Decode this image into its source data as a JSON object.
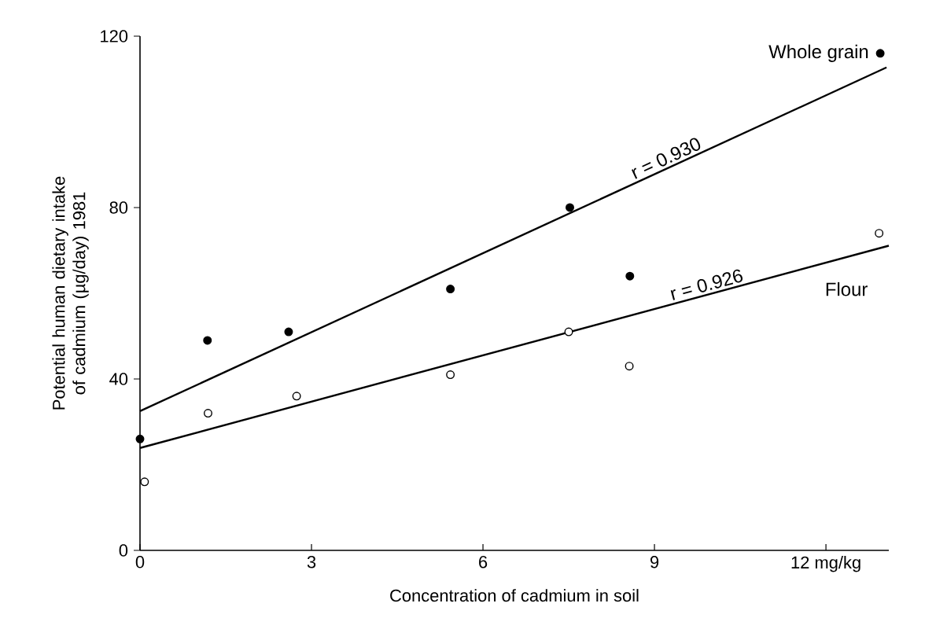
{
  "chart_data": {
    "type": "scatter",
    "xlabel": "Concentration of cadmium in soil",
    "ylabel": "Potential human dietary intake of cadmium (µg/day) 1981",
    "xlim": [
      0,
      13.1
    ],
    "ylim": [
      0,
      120
    ],
    "xticks": [
      0,
      3,
      6,
      9,
      {
        "value": 12,
        "label": "12 mg/kg"
      }
    ],
    "yticks": [
      0,
      40,
      80,
      120
    ],
    "series": [
      {
        "name": "Whole grain",
        "marker": "circle",
        "color": "#000000",
        "x": [
          0,
          1.18,
          2.6,
          5.43,
          7.52,
          8.57,
          12.95
        ],
        "values": [
          26,
          49,
          51,
          61,
          80,
          64,
          116
        ]
      },
      {
        "name": "Flour",
        "marker": "circle",
        "color": "#ffffff",
        "x": [
          0.08,
          1.19,
          2.74,
          5.43,
          7.5,
          8.56,
          12.93
        ],
        "values": [
          16,
          32,
          36,
          41,
          51,
          43,
          74
        ]
      },
      {
        "type": "line",
        "marker": "none",
        "color": "#000000",
        "x": [
          0,
          13.06
        ],
        "values": [
          32.5,
          112.7
        ]
      },
      {
        "type": "line",
        "marker": "none",
        "color": "#000000",
        "x": [
          0,
          13.1
        ],
        "values": [
          23.9,
          71.1
        ]
      }
    ],
    "annotations": [
      "r = 0.930",
      "r = 0.926"
    ]
  }
}
